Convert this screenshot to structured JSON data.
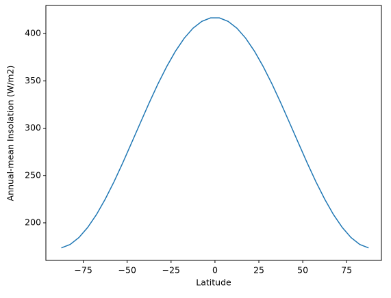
{
  "chart_data": {
    "type": "line",
    "xlabel": "Latitude",
    "ylabel": "Annual-mean Insolation (W/m2)",
    "x": [
      -87.5,
      -82.5,
      -77.5,
      -72.5,
      -67.5,
      -62.5,
      -57.5,
      -52.5,
      -47.5,
      -42.5,
      -37.5,
      -32.5,
      -27.5,
      -22.5,
      -17.5,
      -12.5,
      -7.5,
      -2.5,
      2.5,
      7.5,
      12.5,
      17.5,
      22.5,
      27.5,
      32.5,
      37.5,
      42.5,
      47.5,
      52.5,
      57.5,
      62.5,
      67.5,
      72.5,
      77.5,
      82.5,
      87.5
    ],
    "values": [
      173.5,
      177.1,
      184.4,
      195.1,
      208.7,
      225.0,
      243.4,
      263.4,
      284.4,
      305.6,
      326.6,
      346.6,
      365.0,
      381.3,
      395.0,
      405.6,
      412.8,
      416.5,
      416.5,
      412.8,
      405.6,
      395.0,
      381.3,
      365.0,
      346.6,
      326.6,
      305.6,
      284.4,
      263.4,
      243.4,
      225.0,
      208.7,
      195.1,
      184.4,
      177.1,
      173.5
    ],
    "color": "#1f77b4",
    "xlim": [
      -96.3,
      94.8
    ],
    "ylim": [
      160.3,
      429.6
    ],
    "xticks": [
      {
        "value": -75,
        "label": "−75"
      },
      {
        "value": -50,
        "label": "−50"
      },
      {
        "value": -25,
        "label": "−25"
      },
      0,
      25,
      50,
      75
    ],
    "yticks": [
      200,
      250,
      300,
      350,
      400
    ],
    "grid": false
  }
}
